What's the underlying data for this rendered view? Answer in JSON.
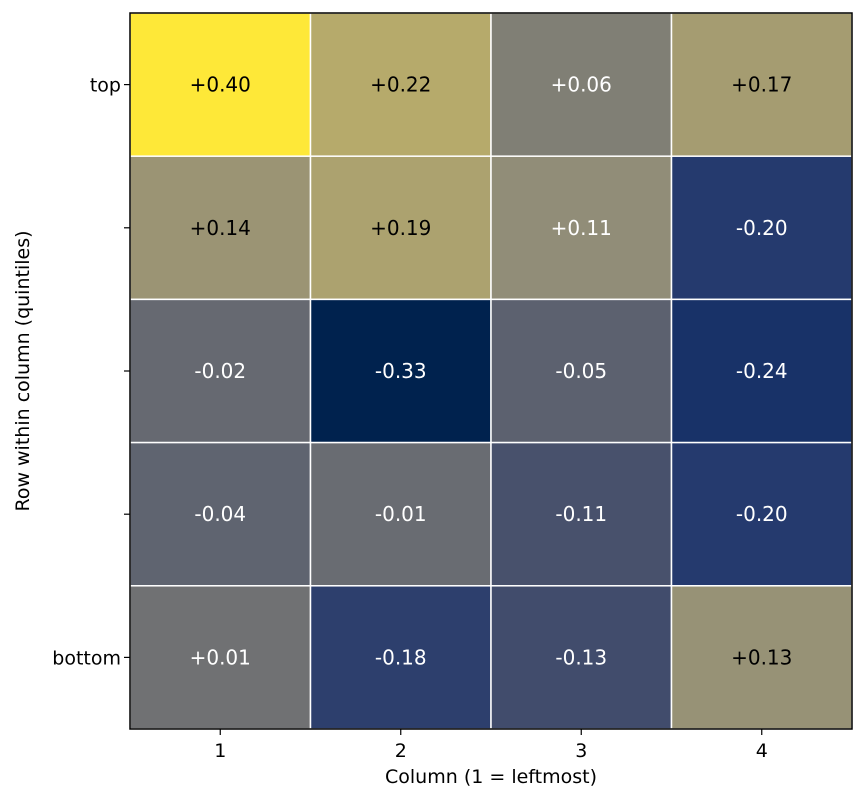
{
  "chart_data": {
    "type": "heatmap",
    "title": "",
    "xlabel": "Column (1 = leftmost)",
    "ylabel": "Row within column (quintiles)",
    "x_categories": [
      "1",
      "2",
      "3",
      "4"
    ],
    "y_categories": [
      "top",
      "",
      "",
      "",
      "bottom"
    ],
    "values": [
      [
        0.4,
        0.22,
        0.06,
        0.17
      ],
      [
        0.14,
        0.19,
        0.11,
        -0.2
      ],
      [
        -0.02,
        -0.33,
        -0.05,
        -0.24
      ],
      [
        -0.04,
        -0.01,
        -0.11,
        -0.2
      ],
      [
        0.01,
        -0.18,
        -0.13,
        0.13
      ]
    ],
    "value_labels": [
      [
        "+0.40",
        "+0.22",
        "+0.06",
        "+0.17"
      ],
      [
        "+0.14",
        "+0.19",
        "+0.11",
        "-0.20"
      ],
      [
        "-0.02",
        "-0.33",
        "-0.05",
        "-0.24"
      ],
      [
        "-0.04",
        "-0.01",
        "-0.11",
        "-0.20"
      ],
      [
        "+0.01",
        "-0.18",
        "-0.13",
        "+0.13"
      ]
    ],
    "colormap": "cividis",
    "vmin": -0.33,
    "vmax": 0.4,
    "grid": true,
    "grid_color": "#ffffff"
  }
}
